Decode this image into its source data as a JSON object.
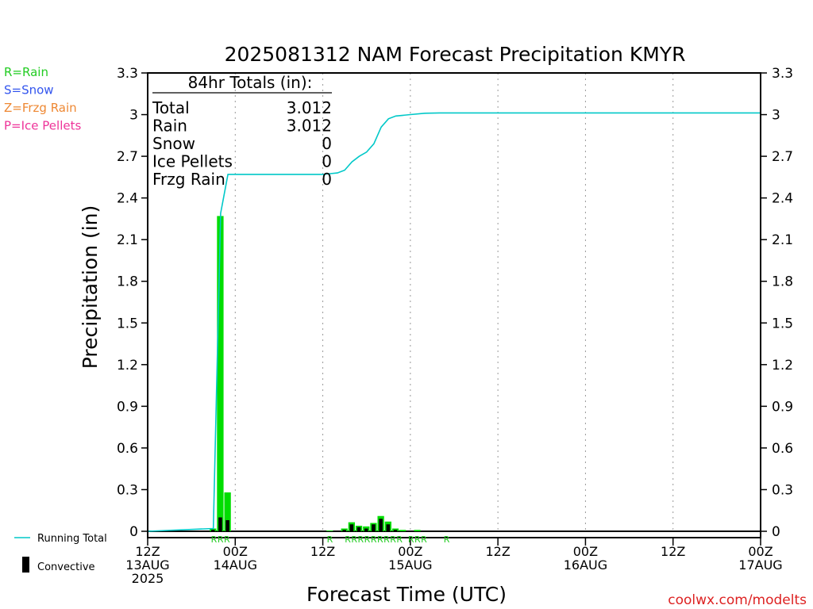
{
  "chart_data": {
    "type": "bar",
    "title": "2025081312 NAM Forecast Precipitation KMYR",
    "xlabel": "Forecast Time (UTC)",
    "ylabel": "Precipitation (in)",
    "ylim": [
      0,
      3.3
    ],
    "y_ticks": [
      "0",
      "0.3",
      "0.6",
      "0.9",
      "1.2",
      "1.5",
      "1.8",
      "2.1",
      "2.4",
      "2.7",
      "3",
      "3.3"
    ],
    "x_range_hours": [
      0,
      84
    ],
    "x_ticks": [
      {
        "hour": 0,
        "line1": "12Z",
        "line2": "13AUG",
        "line3": "2025"
      },
      {
        "hour": 12,
        "line1": "00Z",
        "line2": "14AUG",
        "line3": ""
      },
      {
        "hour": 24,
        "line1": "12Z",
        "line2": "",
        "line3": ""
      },
      {
        "hour": 36,
        "line1": "00Z",
        "line2": "15AUG",
        "line3": ""
      },
      {
        "hour": 48,
        "line1": "12Z",
        "line2": "",
        "line3": ""
      },
      {
        "hour": 60,
        "line1": "00Z",
        "line2": "16AUG",
        "line3": ""
      },
      {
        "hour": 72,
        "line1": "12Z",
        "line2": "",
        "line3": ""
      },
      {
        "hour": 84,
        "line1": "00Z",
        "line2": "17AUG",
        "line3": ""
      }
    ],
    "grid": "vertical dotted",
    "precip_type_legend": [
      {
        "text": "R=Rain",
        "color": "#22cc22"
      },
      {
        "text": "S=Snow",
        "color": "#3355ee"
      },
      {
        "text": "Z=Frzg Rain",
        "color": "#ee8833"
      },
      {
        "text": "P=Ice Pellets",
        "color": "#ee3399"
      }
    ],
    "series_legend": {
      "running_total": "Running Total",
      "convective": "Convective"
    },
    "colors": {
      "rain": "#00dd00",
      "convective": "#000000",
      "running_total": "#00c8c8"
    },
    "precip_bars": [
      {
        "hour": 9,
        "total": 0.02,
        "convective": 0.01
      },
      {
        "hour": 10,
        "total": 2.27,
        "convective": 0.1
      },
      {
        "hour": 11,
        "total": 0.28,
        "convective": 0.08
      },
      {
        "hour": 25,
        "total": 0.005,
        "convective": 0.0
      },
      {
        "hour": 27,
        "total": 0.02,
        "convective": 0.01
      },
      {
        "hour": 28,
        "total": 0.065,
        "convective": 0.05
      },
      {
        "hour": 29,
        "total": 0.04,
        "convective": 0.03
      },
      {
        "hour": 30,
        "total": 0.035,
        "convective": 0.02
      },
      {
        "hour": 31,
        "total": 0.06,
        "convective": 0.05
      },
      {
        "hour": 32,
        "total": 0.11,
        "convective": 0.09
      },
      {
        "hour": 33,
        "total": 0.07,
        "convective": 0.05
      },
      {
        "hour": 34,
        "total": 0.02,
        "convective": 0.01
      },
      {
        "hour": 35,
        "total": 0.01,
        "convective": 0.0
      },
      {
        "hour": 37,
        "total": 0.01,
        "convective": 0.0
      }
    ],
    "running_total": {
      "hours": [
        0,
        9,
        10,
        11,
        12,
        24,
        25,
        26,
        27,
        28,
        29,
        30,
        31,
        32,
        33,
        34,
        35,
        36,
        38,
        40,
        84
      ],
      "values": [
        0,
        0.02,
        2.29,
        2.57,
        2.57,
        2.57,
        2.575,
        2.58,
        2.6,
        2.66,
        2.7,
        2.73,
        2.79,
        2.91,
        2.97,
        2.99,
        2.995,
        3.0,
        3.01,
        3.012,
        3.012
      ]
    },
    "rain_markers": [
      {
        "hours": [
          9,
          10,
          11
        ],
        "text": "RRR"
      },
      {
        "hours": [
          25
        ],
        "text": "R"
      },
      {
        "hours": [
          27,
          28,
          29,
          30,
          31,
          32,
          33,
          34,
          35
        ],
        "text": "RRRRRRRRR"
      },
      {
        "hours": [
          36,
          37,
          38
        ],
        "text": "RRR"
      },
      {
        "hours": [
          41
        ],
        "text": "R"
      }
    ],
    "totals_box": {
      "heading": "84hr Totals (in):",
      "rows": [
        {
          "label": "Total",
          "value": "3.012"
        },
        {
          "label": "Rain",
          "value": "3.012"
        },
        {
          "label": "Snow",
          "value": "0"
        },
        {
          "label": "Ice Pellets",
          "value": "0"
        },
        {
          "label": "Frzg Rain",
          "value": "0"
        }
      ]
    }
  },
  "credit": "coolwx.com/modelts"
}
